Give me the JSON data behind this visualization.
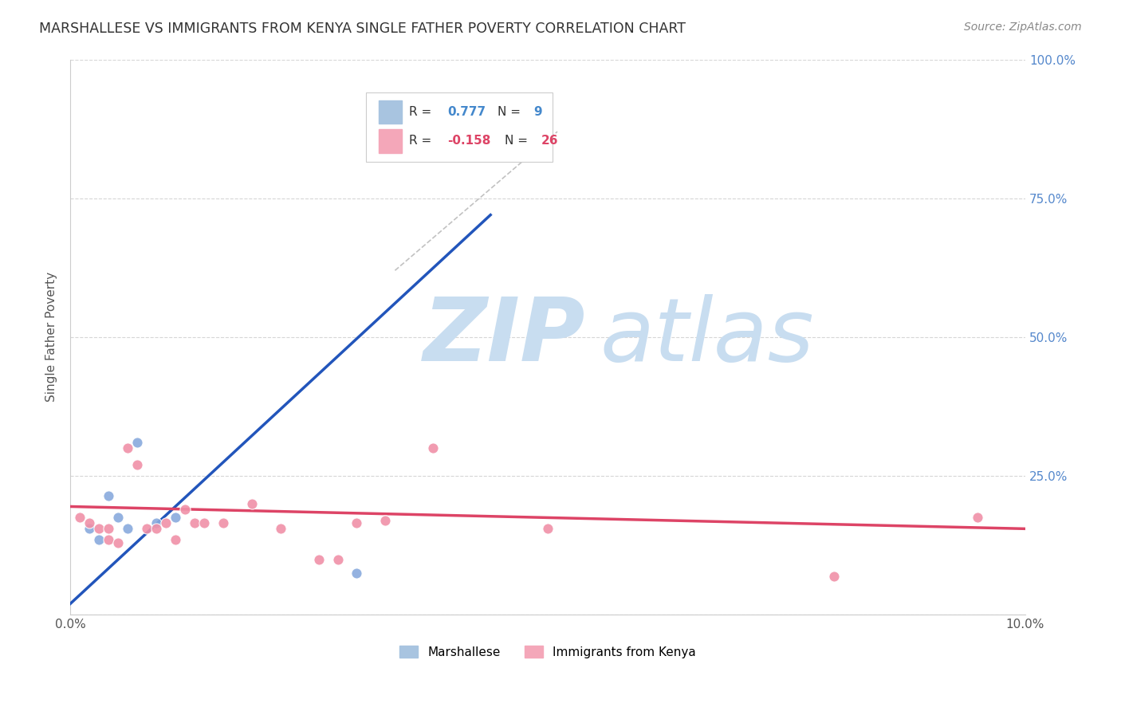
{
  "title": "MARSHALLESE VS IMMIGRANTS FROM KENYA SINGLE FATHER POVERTY CORRELATION CHART",
  "source": "Source: ZipAtlas.com",
  "ylabel_text": "Single Father Poverty",
  "x_min": 0.0,
  "x_max": 0.1,
  "y_min": 0.0,
  "y_max": 1.0,
  "x_ticks": [
    0.0,
    0.02,
    0.04,
    0.06,
    0.08,
    0.1
  ],
  "x_tick_labels": [
    "0.0%",
    "",
    "",
    "",
    "",
    "10.0%"
  ],
  "y_ticks": [
    0.0,
    0.25,
    0.5,
    0.75,
    1.0
  ],
  "y_tick_labels_right": [
    "",
    "25.0%",
    "50.0%",
    "75.0%",
    "100.0%"
  ],
  "marshallese_x": [
    0.002,
    0.003,
    0.004,
    0.005,
    0.006,
    0.007,
    0.009,
    0.011,
    0.03
  ],
  "marshallese_y": [
    0.155,
    0.135,
    0.215,
    0.175,
    0.155,
    0.31,
    0.165,
    0.175,
    0.075
  ],
  "kenya_x": [
    0.001,
    0.002,
    0.003,
    0.004,
    0.004,
    0.005,
    0.006,
    0.007,
    0.008,
    0.009,
    0.01,
    0.011,
    0.012,
    0.013,
    0.014,
    0.016,
    0.019,
    0.022,
    0.026,
    0.028,
    0.03,
    0.033,
    0.038,
    0.05,
    0.08,
    0.095
  ],
  "kenya_y": [
    0.175,
    0.165,
    0.155,
    0.155,
    0.135,
    0.13,
    0.3,
    0.27,
    0.155,
    0.155,
    0.165,
    0.135,
    0.19,
    0.165,
    0.165,
    0.165,
    0.2,
    0.155,
    0.1,
    0.1,
    0.165,
    0.17,
    0.3,
    0.155,
    0.07,
    0.175
  ],
  "blue_line_x": [
    0.0,
    0.044
  ],
  "blue_line_y": [
    0.02,
    0.72
  ],
  "pink_line_x": [
    0.0,
    0.1
  ],
  "pink_line_y": [
    0.195,
    0.155
  ],
  "diag_line_x": [
    0.034,
    0.051
  ],
  "diag_line_y": [
    0.62,
    0.87
  ],
  "blue_line_color": "#2255bb",
  "pink_line_color": "#dd4466",
  "diag_line_color": "#bbbbbb",
  "marker_blue": "#88aadd",
  "marker_pink": "#f090a8",
  "marker_size": 90,
  "legend_blue_color": "#a8c4e0",
  "legend_pink_color": "#f4a7b9",
  "watermark_zip_color": "#c8ddf0",
  "watermark_atlas_color": "#c8ddf0",
  "background_color": "#ffffff",
  "grid_color": "#cccccc",
  "tick_label_color": "#5588cc",
  "title_color": "#333333",
  "source_color": "#888888",
  "ylabel_color": "#555555"
}
